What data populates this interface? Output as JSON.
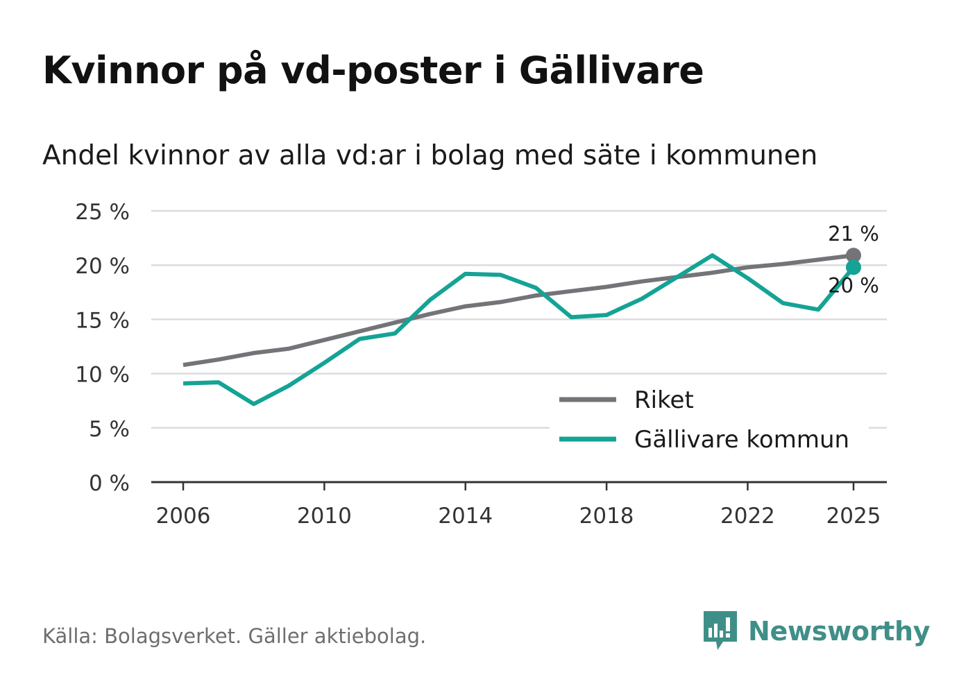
{
  "title": "Kvinnor på vd-poster i Gällivare",
  "subtitle": "Andel kvinnor av alla vd:ar i bolag med säte i kommunen",
  "source": "Källa: Bolagsverket. Gäller aktiebolag.",
  "brand": "Newsworthy",
  "colors": {
    "riket": "#747378",
    "gallivare": "#14a395",
    "grid": "#dcdcdc",
    "axis": "#333333",
    "brand": "#3f8f88"
  },
  "chart_data": {
    "type": "line",
    "title": "Kvinnor på vd-poster i Gällivare",
    "xlabel": "",
    "ylabel": "",
    "xlim": [
      2006,
      2025
    ],
    "ylim": [
      0,
      25
    ],
    "x_ticks": [
      2006,
      2010,
      2014,
      2018,
      2022,
      2025
    ],
    "y_ticks": [
      0,
      5,
      10,
      15,
      20,
      25
    ],
    "y_tick_labels": [
      "0 %",
      "5 %",
      "10 %",
      "15 %",
      "20 %",
      "25 %"
    ],
    "x": [
      2006,
      2007,
      2008,
      2009,
      2010,
      2011,
      2012,
      2013,
      2014,
      2015,
      2016,
      2017,
      2018,
      2019,
      2020,
      2021,
      2022,
      2023,
      2024,
      2025
    ],
    "series": [
      {
        "name": "Riket",
        "color": "#747378",
        "values": [
          10.8,
          11.3,
          11.9,
          12.3,
          13.1,
          13.9,
          14.7,
          15.5,
          16.2,
          16.6,
          17.2,
          17.6,
          18.0,
          18.5,
          18.9,
          19.3,
          19.8,
          20.1,
          20.5,
          20.9
        ],
        "end_label": "21 %"
      },
      {
        "name": "Gällivare kommun",
        "color": "#14a395",
        "values": [
          9.1,
          9.2,
          7.2,
          8.9,
          11.0,
          13.2,
          13.7,
          16.8,
          19.2,
          19.1,
          17.9,
          15.2,
          15.4,
          16.9,
          18.9,
          20.9,
          18.8,
          16.5,
          15.9,
          19.8
        ],
        "end_label": "20 %"
      }
    ],
    "legend": {
      "position": "bottom-right",
      "entries": [
        "Riket",
        "Gällivare kommun"
      ]
    }
  }
}
